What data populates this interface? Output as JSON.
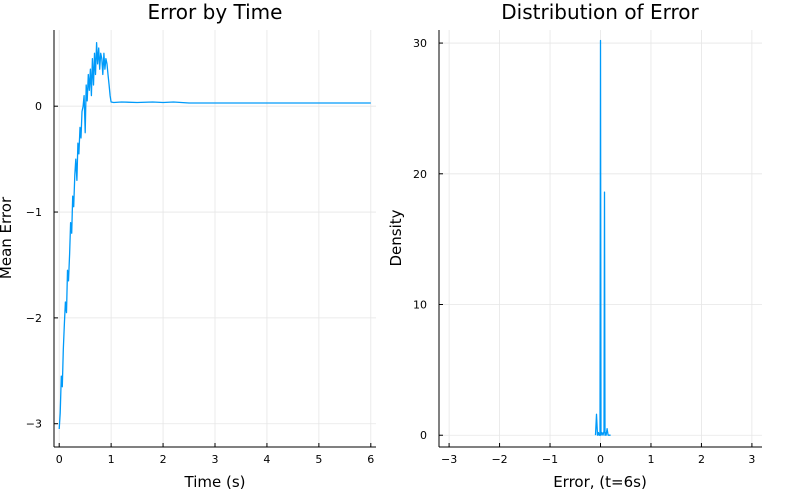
{
  "colors": {
    "series": "#009af9",
    "axis": "#000000",
    "grid": "#e6e6e6"
  },
  "chart_data": [
    {
      "type": "line",
      "title": "Error by Time",
      "xlabel": "Time (s)",
      "ylabel": "Mean Error",
      "xlim": [
        -0.1,
        6.1
      ],
      "ylim": [
        -3.22,
        0.72
      ],
      "xticks": [
        0,
        1,
        2,
        3,
        4,
        5,
        6
      ],
      "xtick_labels": [
        "0",
        "1",
        "2",
        "3",
        "4",
        "5",
        "6"
      ],
      "yticks": [
        -3,
        -2,
        -1,
        0
      ],
      "ytick_labels": [
        "−3",
        "−2",
        "−1",
        "0"
      ],
      "grid": true,
      "legend": "none",
      "series": [
        {
          "x": [
            0,
            0.02,
            0.04,
            0.06,
            0.08,
            0.1,
            0.12,
            0.14,
            0.16,
            0.18,
            0.2,
            0.22,
            0.24,
            0.26,
            0.28,
            0.3,
            0.32,
            0.34,
            0.36,
            0.38,
            0.4,
            0.42,
            0.44,
            0.46,
            0.48,
            0.5,
            0.52,
            0.54,
            0.56,
            0.58,
            0.6,
            0.62,
            0.64,
            0.66,
            0.68,
            0.7,
            0.72,
            0.74,
            0.76,
            0.78,
            0.8,
            0.82,
            0.84,
            0.86,
            0.88,
            0.9,
            0.92,
            0.94,
            0.96,
            0.98,
            1.0,
            1.05,
            1.2,
            1.5,
            1.8,
            2.0,
            2.2,
            2.5,
            3.0,
            3.5,
            4.0,
            4.5,
            5.0,
            5.5,
            6.0
          ],
          "y": [
            -3.05,
            -2.9,
            -2.55,
            -2.65,
            -2.3,
            -2.05,
            -1.85,
            -1.95,
            -1.55,
            -1.65,
            -1.4,
            -1.1,
            -1.2,
            -0.85,
            -0.95,
            -0.65,
            -0.5,
            -0.7,
            -0.35,
            -0.45,
            -0.2,
            -0.3,
            -0.05,
            0.0,
            0.1,
            -0.25,
            0.2,
            0.05,
            0.3,
            0.15,
            0.35,
            0.1,
            0.45,
            0.2,
            0.5,
            0.3,
            0.6,
            0.4,
            0.55,
            0.35,
            0.5,
            0.45,
            0.3,
            0.5,
            0.35,
            0.45,
            0.4,
            0.3,
            0.2,
            0.1,
            0.04,
            0.035,
            0.04,
            0.035,
            0.04,
            0.035,
            0.04,
            0.03,
            0.03,
            0.03,
            0.03,
            0.03,
            0.03,
            0.03,
            0.03
          ]
        }
      ]
    },
    {
      "type": "line",
      "title": "Distribution of Error",
      "xlabel": "Error, (t=6s)",
      "ylabel": "Density",
      "xlim": [
        -3.2,
        3.2
      ],
      "ylim": [
        -0.9,
        31.0
      ],
      "xticks": [
        -3,
        -2,
        -1,
        0,
        1,
        2,
        3
      ],
      "xtick_labels": [
        "−3",
        "−2",
        "−1",
        "0",
        "1",
        "2",
        "3"
      ],
      "yticks": [
        0,
        10,
        20,
        30
      ],
      "ytick_labels": [
        "0",
        "10",
        "20",
        "30"
      ],
      "grid": true,
      "legend": "none",
      "series": [
        {
          "x": [
            -0.1,
            -0.08,
            -0.06,
            -0.04,
            -0.03,
            -0.01,
            0.0,
            0.01,
            0.03,
            0.05,
            0.07,
            0.08,
            0.09,
            0.1,
            0.11,
            0.13,
            0.15,
            0.17,
            0.2
          ],
          "y": [
            0.0,
            1.6,
            0.0,
            0.2,
            0.0,
            0.0,
            30.2,
            0.0,
            0.2,
            0.0,
            0.3,
            18.6,
            0.0,
            0.2,
            0.0,
            0.5,
            0.0,
            0.0,
            0.0
          ]
        }
      ]
    }
  ]
}
